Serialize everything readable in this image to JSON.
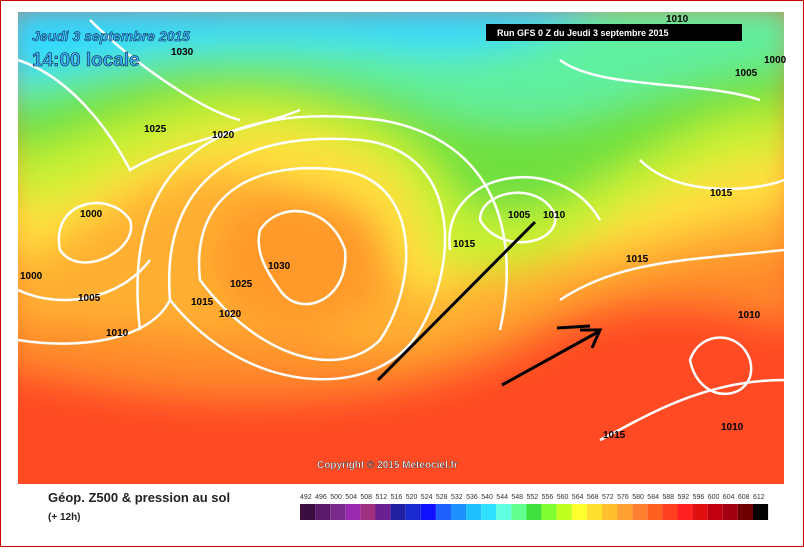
{
  "header": {
    "date": "Jeudi 3 septembre 2015",
    "time": "14:00 locale",
    "run": "Run GFS 0 Z du Jeudi 3 septembre 2015"
  },
  "isobar_labels": [
    "1010",
    "1030",
    "1005",
    "1000",
    "1025",
    "1020",
    "1000",
    "1005",
    "1010",
    "1015",
    "1015",
    "1000",
    "1005",
    "1030",
    "1025",
    "1015",
    "1020",
    "1010",
    "1015",
    "1010",
    "1015",
    "1010"
  ],
  "copyright": "Copyright © 2015 Meteociel.fr",
  "legend": {
    "title": "Géop. Z500 & pression au sol",
    "subtitle": "(+ 12h)",
    "scale": [
      492,
      496,
      500,
      504,
      508,
      512,
      516,
      520,
      524,
      528,
      532,
      536,
      540,
      544,
      548,
      552,
      556,
      560,
      564,
      568,
      572,
      576,
      580,
      584,
      588,
      592,
      596,
      600,
      604,
      608,
      612
    ],
    "colors": [
      "#3a0f3f",
      "#5a1a6a",
      "#7a2a8a",
      "#9a2ab0",
      "#a03080",
      "#6a2090",
      "#2020a0",
      "#1a2ad0",
      "#1010ff",
      "#2060ff",
      "#2090ff",
      "#20c0ff",
      "#30e0ff",
      "#60ffe0",
      "#60ff90",
      "#40e040",
      "#80ff30",
      "#c0ff20",
      "#ffff30",
      "#ffe030",
      "#ffc030",
      "#ffa030",
      "#ff8030",
      "#ff6020",
      "#ff4020",
      "#ff2020",
      "#e01010",
      "#c00010",
      "#a00010",
      "#700000",
      "#000000"
    ]
  }
}
